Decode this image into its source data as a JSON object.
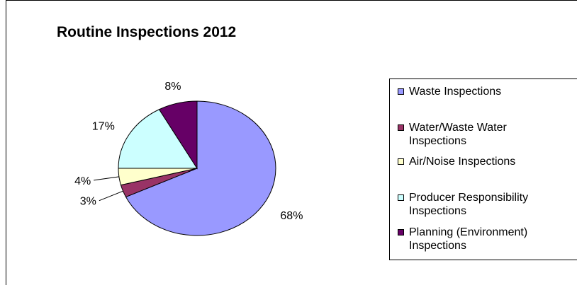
{
  "chart_data": {
    "type": "pie",
    "title": "Routine Inspections 2012",
    "categories": [
      "Waste Inspections",
      "Water/Waste Water Inspections",
      "Air/Noise Inspections",
      "Producer Responsibility Inspections",
      "Planning (Environment) Inspections"
    ],
    "values": [
      68,
      3,
      4,
      17,
      8
    ],
    "data_labels": [
      "68%",
      "3%",
      "4%",
      "17%",
      "8%"
    ],
    "colors": [
      "#9999ff",
      "#993366",
      "#ffffcc",
      "#ccffff",
      "#660066"
    ],
    "legend": {
      "placement": "right",
      "entries": [
        {
          "label": "Waste Inspections",
          "color": "#9999ff"
        },
        {
          "label": "Water/Waste Water\nInspections",
          "color": "#993366"
        },
        {
          "label": "Air/Noise Inspections",
          "color": "#ffffcc"
        },
        {
          "label": "Producer Responsibility\nInspections",
          "color": "#ccffff"
        },
        {
          "label": "Planning (Environment)\nInspections",
          "color": "#660066"
        }
      ]
    }
  }
}
